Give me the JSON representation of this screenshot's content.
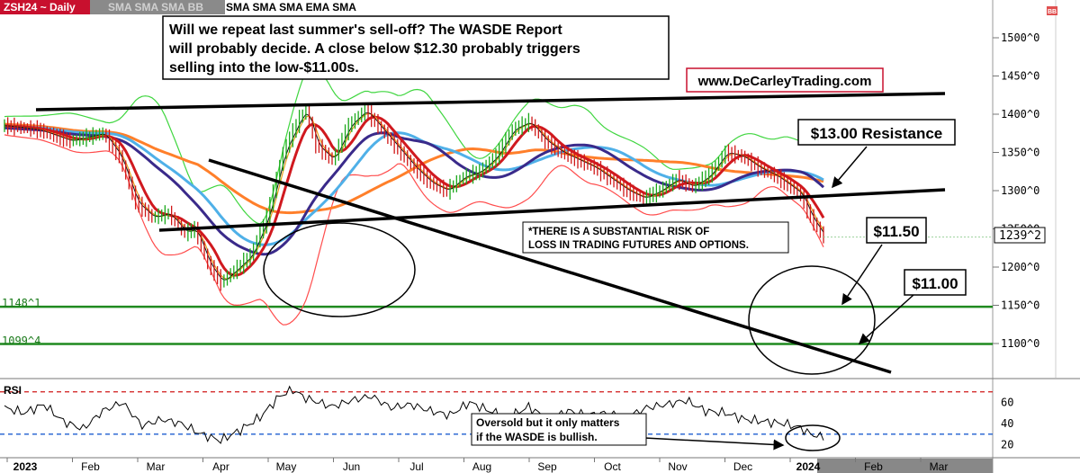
{
  "header": {
    "symbol_label": "ZSH24 ~ Daily",
    "indicators_gray": "SMA SMA SMA BB",
    "indicators_black": "SMA SMA SMA EMA SMA"
  },
  "annotations": {
    "headline": [
      "Will we repeat last summer's sell-off? The WASDE Report",
      " will probably decide. A close below $12.30 probably triggers",
      " selling into the low-$11.00s."
    ],
    "website": "www.DeCarleyTrading.com",
    "resistance_label": "$13.00 Resistance",
    "target_1": "$11.50",
    "target_2": "$11.00",
    "risk_disclaimer": [
      "*THERE IS A SUBSTANTIAL RISK OF",
      "LOSS IN TRADING FUTURES AND OPTIONS."
    ],
    "oversold_note": [
      "Oversold but it only matters",
      "if the WASDE is bullish."
    ],
    "support_level_1": "1148^1",
    "support_level_2": "1099^4",
    "last_price_tag": "1239^2",
    "rsi_label": "RSI",
    "corner_badge": "BB"
  },
  "chart_data": [
    {
      "type": "line",
      "title": "ZSH24 ~ Daily",
      "y_tick_labels": [
        "1500^0",
        "1450^0",
        "1400^0",
        "1350^0",
        "1300^0",
        "1250^0",
        "1200^0",
        "1150^0",
        "1100^0"
      ],
      "y_ticks": [
        1500,
        1450,
        1400,
        1350,
        1300,
        1250,
        1200,
        1150,
        1100
      ],
      "ylim": [
        1070,
        1530
      ],
      "x_tick_labels": [
        "2023",
        "Feb",
        "Mar",
        "Apr",
        "May",
        "Jun",
        "Jul",
        "Aug",
        "Sep",
        "Oct",
        "Nov",
        "Dec",
        "2024",
        "Feb",
        "Mar"
      ],
      "horizontal_levels": [
        1148.1,
        1099.4
      ],
      "last_price": 1239.2,
      "series": [
        {
          "x": [
            0,
            10,
            20,
            30,
            35,
            40,
            45,
            50,
            55,
            58,
            62,
            66,
            70,
            75,
            80,
            85,
            90,
            92,
            95,
            100,
            105,
            110,
            115,
            120,
            125,
            130,
            135,
            140,
            145,
            150,
            155,
            160,
            165,
            170,
            175,
            180,
            185,
            190,
            195,
            200,
            205,
            210,
            215,
            220,
            225,
            230,
            235,
            240,
            243,
            246,
            250
          ],
          "values": [
            1385,
            1380,
            1365,
            1375,
            1345,
            1285,
            1265,
            1270,
            1245,
            1250,
            1205,
            1180,
            1195,
            1215,
            1265,
            1350,
            1395,
            1405,
            1360,
            1340,
            1385,
            1405,
            1380,
            1355,
            1330,
            1310,
            1300,
            1318,
            1325,
            1345,
            1380,
            1390,
            1365,
            1350,
            1340,
            1330,
            1315,
            1300,
            1290,
            1300,
            1315,
            1305,
            1320,
            1350,
            1345,
            1330,
            1320,
            1305,
            1295,
            1265,
            1239
          ]
        }
      ]
    },
    {
      "type": "line",
      "title": "RSI",
      "y_tick_labels": [
        "60",
        "40",
        "20"
      ],
      "y_ticks": [
        60,
        40,
        20
      ],
      "ylim": [
        12,
        80
      ],
      "reference_levels": [
        70,
        30
      ],
      "series": [
        {
          "x": [
            0,
            6,
            12,
            18,
            24,
            30,
            36,
            42,
            48,
            54,
            60,
            66,
            72,
            78,
            84,
            88,
            92,
            96,
            100,
            106,
            112,
            118,
            124,
            130,
            136,
            142,
            148,
            154,
            160,
            166,
            172,
            178,
            184,
            190,
            196,
            202,
            208,
            214,
            220,
            226,
            232,
            238,
            243,
            246,
            250
          ],
          "values": [
            55,
            50,
            58,
            42,
            35,
            52,
            60,
            38,
            44,
            40,
            30,
            24,
            34,
            46,
            66,
            72,
            64,
            60,
            56,
            62,
            66,
            55,
            58,
            52,
            48,
            60,
            52,
            46,
            56,
            44,
            52,
            48,
            50,
            46,
            55,
            58,
            62,
            52,
            50,
            44,
            42,
            40,
            36,
            30,
            27
          ]
        }
      ]
    }
  ]
}
